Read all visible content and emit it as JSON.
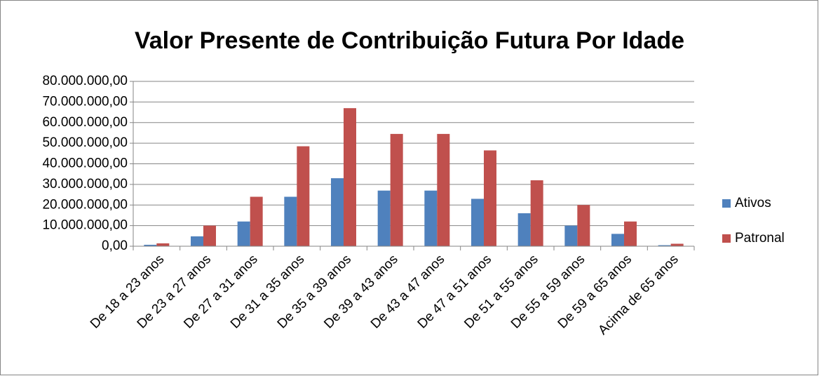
{
  "chart_data": {
    "type": "bar",
    "title": "Valor Presente de Contribuição Futura Por Idade",
    "categories": [
      "De 18 a 23 anos",
      "De 23 a 27 anos",
      "De 27 a 31 anos",
      "De 31 a 35 anos",
      "De 35 a 39 anos",
      "De 39 a 43 anos",
      "De 43 a 47 anos",
      "De 47 a 51 anos",
      "De 51 a 55 anos",
      "De 55 a 59 anos",
      "De 59 a 65 anos",
      "Acima de 65 anos"
    ],
    "series": [
      {
        "name": "Ativos",
        "color": "#4f81bd",
        "values": [
          700000,
          4800000,
          12000000,
          24000000,
          33000000,
          27000000,
          27000000,
          23000000,
          16000000,
          10000000,
          6000000,
          500000
        ]
      },
      {
        "name": "Patronal",
        "color": "#c0504d",
        "values": [
          1400000,
          10000000,
          24000000,
          48500000,
          67000000,
          54500000,
          54500000,
          46500000,
          32000000,
          20000000,
          12000000,
          1200000
        ]
      }
    ],
    "ylim": [
      0,
      80000000
    ],
    "yticks": [
      {
        "value": 0,
        "label": "0,00"
      },
      {
        "value": 10000000,
        "label": "10.000.000,00"
      },
      {
        "value": 20000000,
        "label": "20.000.000,00"
      },
      {
        "value": 30000000,
        "label": "30.000.000,00"
      },
      {
        "value": 40000000,
        "label": "40.000.000,00"
      },
      {
        "value": 50000000,
        "label": "50.000.000,00"
      },
      {
        "value": 60000000,
        "label": "60.000.000,00"
      },
      {
        "value": 70000000,
        "label": "70.000.000,00"
      },
      {
        "value": 80000000,
        "label": "80.000.000,00"
      }
    ],
    "grid": true,
    "legend": "right"
  }
}
